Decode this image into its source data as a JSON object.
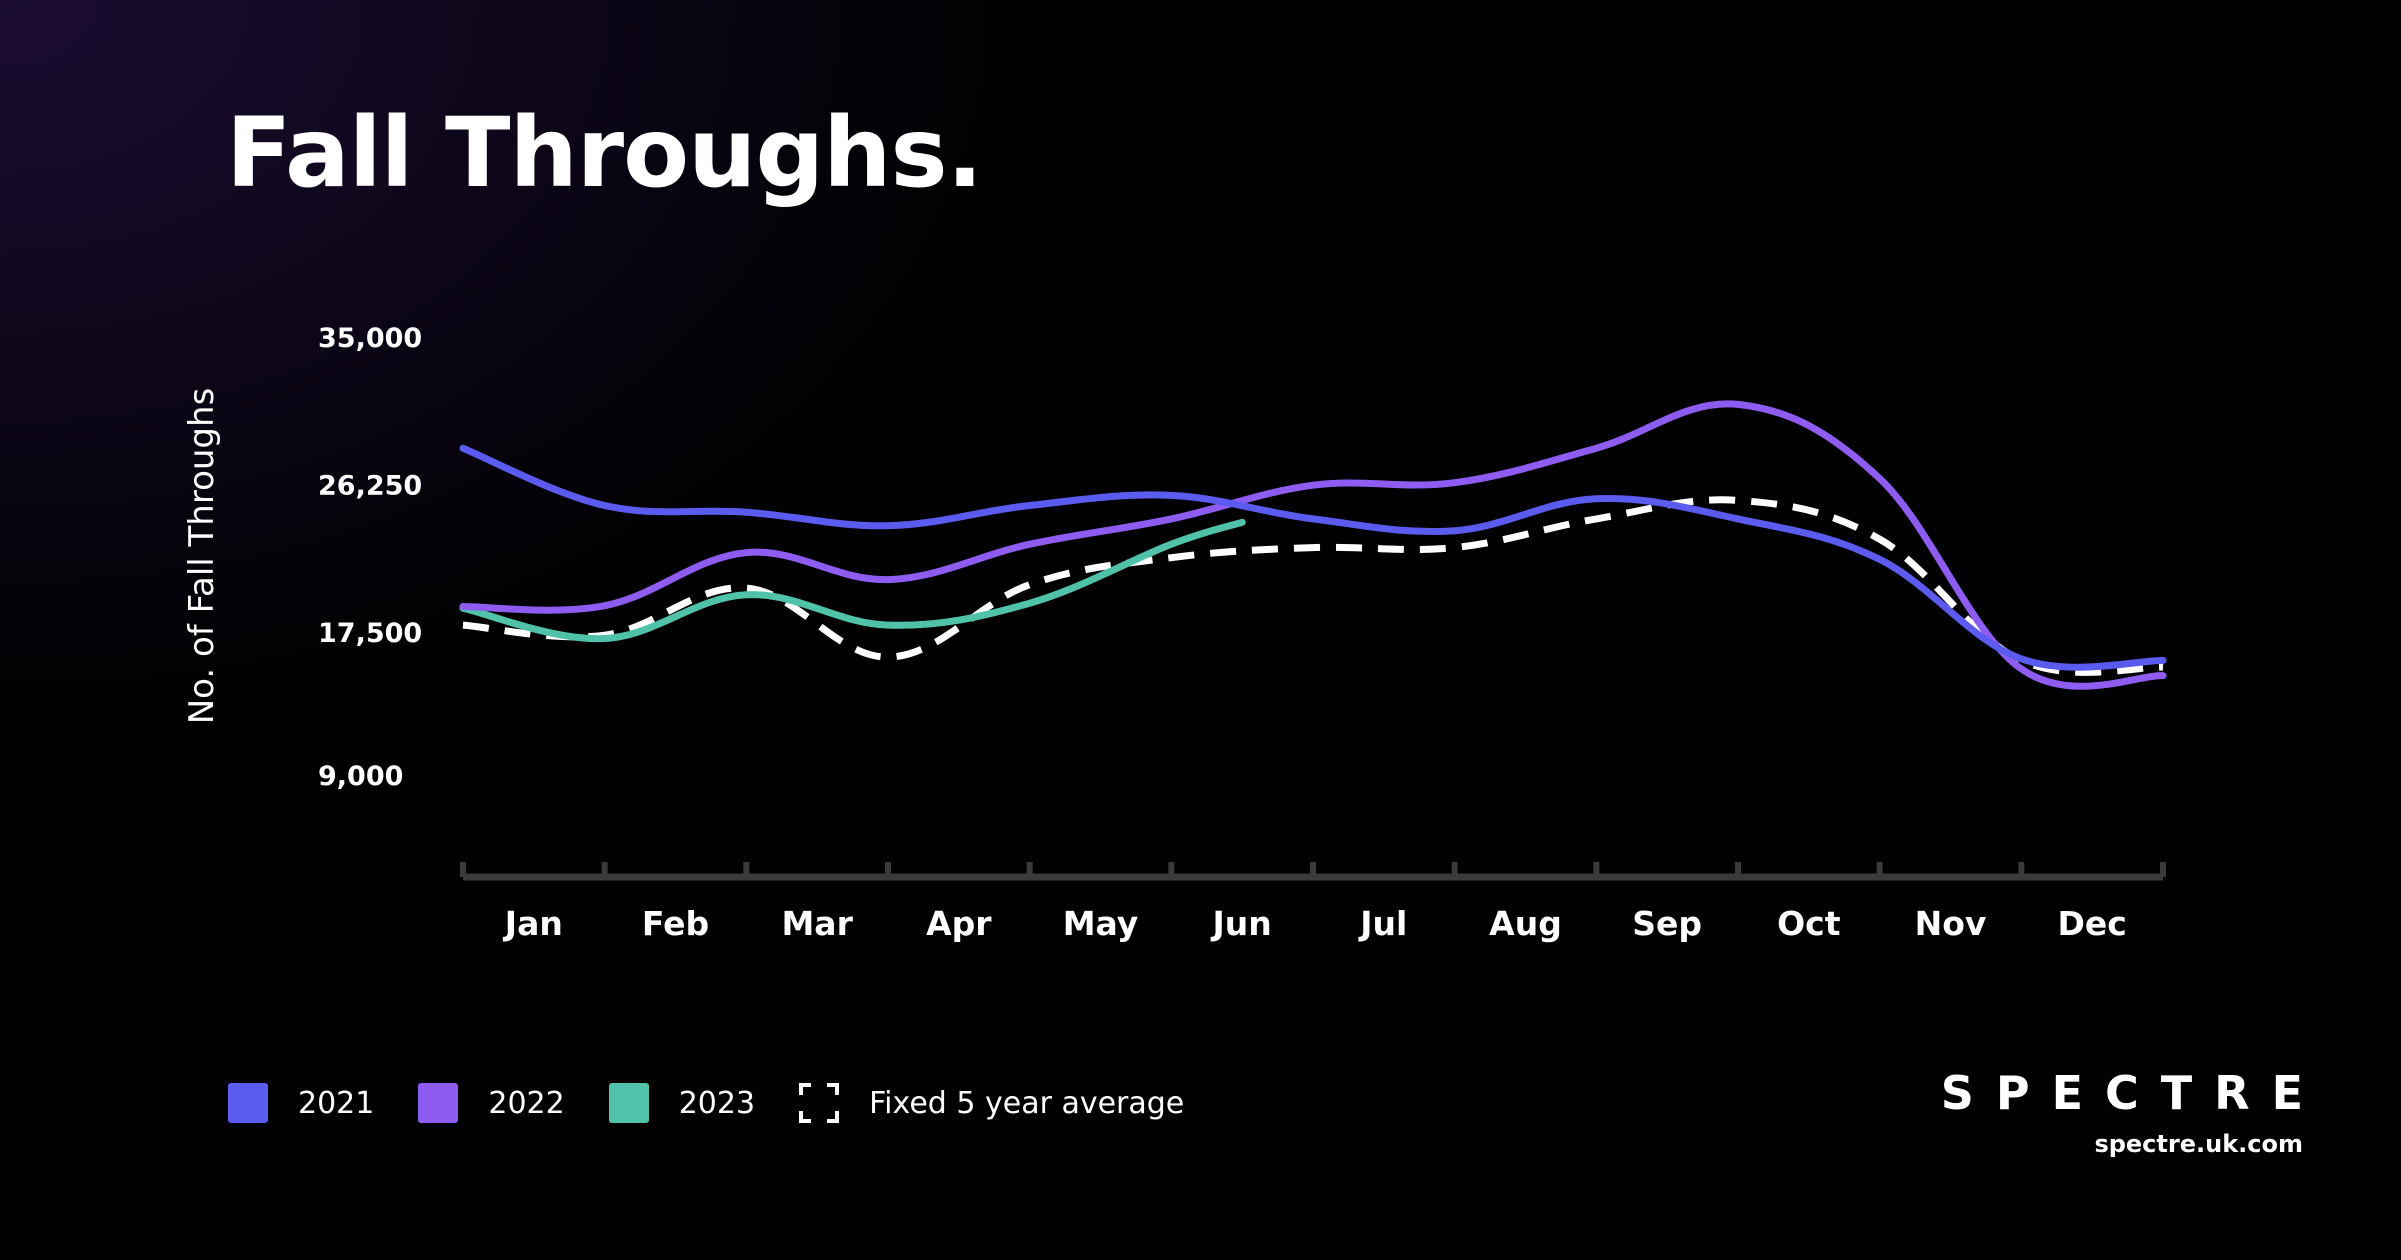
{
  "title": "Fall Throughs.",
  "brand": {
    "logo": "SPECTRE",
    "url": "spectre.uk.com"
  },
  "colors": {
    "2021": "#5b5bf0",
    "2022": "#8f5cf2",
    "2023": "#50c2aa",
    "average": "#ffffff",
    "axis": "#3a3a3a"
  },
  "legend": [
    {
      "label": "2021",
      "color": "#5b5bf0",
      "style": "solid"
    },
    {
      "label": "2022",
      "color": "#8f5cf2",
      "style": "solid"
    },
    {
      "label": "2023",
      "color": "#50c2aa",
      "style": "solid"
    },
    {
      "label": "Fixed 5 year average",
      "color": "#ffffff",
      "style": "dashed"
    }
  ],
  "chart_data": {
    "type": "line",
    "title": "Fall Throughs.",
    "ylabel": "No. of Fall Throughs",
    "xlabel": "",
    "categories": [
      "Jan",
      "Feb",
      "Mar",
      "Apr",
      "May",
      "Jun",
      "Jul",
      "Aug",
      "Sep",
      "Oct",
      "Nov",
      "Dec"
    ],
    "yticks": [
      {
        "value": 35000,
        "label": "35,000"
      },
      {
        "value": 26250,
        "label": "26,250"
      },
      {
        "value": 17500,
        "label": "17,500"
      },
      {
        "value": 9000,
        "label": "9,000"
      }
    ],
    "grid": false,
    "legend_position": "bottom-left",
    "series": [
      {
        "name": "2021",
        "color": "#5b5bf0",
        "dashed": false,
        "x": [
          0,
          1,
          2,
          3,
          4,
          5,
          6,
          7,
          8,
          9,
          10,
          11,
          12
        ],
        "values": [
          28400,
          25000,
          24600,
          23800,
          25000,
          25600,
          24200,
          23500,
          25400,
          24200,
          21800,
          15900,
          15800
        ]
      },
      {
        "name": "2022",
        "color": "#8f5cf2",
        "dashed": false,
        "x": [
          0,
          1,
          2,
          3,
          4,
          5,
          6,
          7,
          8,
          9,
          10,
          11,
          12
        ],
        "values": [
          19000,
          19050,
          22200,
          20600,
          22700,
          24200,
          26200,
          26350,
          28400,
          31000,
          26600,
          15300,
          14900
        ]
      },
      {
        "name": "2023",
        "color": "#50c2aa",
        "dashed": false,
        "x": [
          0,
          1,
          2,
          3,
          4,
          5,
          5.5
        ],
        "values": [
          18900,
          17100,
          19700,
          17900,
          19200,
          22700,
          24000
        ]
      },
      {
        "name": "Fixed 5 year average",
        "color": "#ffffff",
        "dashed": true,
        "x": [
          0,
          1,
          2,
          3,
          4,
          5,
          6,
          7,
          8,
          9,
          10,
          11,
          12
        ],
        "values": [
          17900,
          17300,
          20100,
          16000,
          20300,
          21900,
          22500,
          22500,
          24200,
          25300,
          23000,
          15800,
          15400
        ]
      }
    ]
  }
}
